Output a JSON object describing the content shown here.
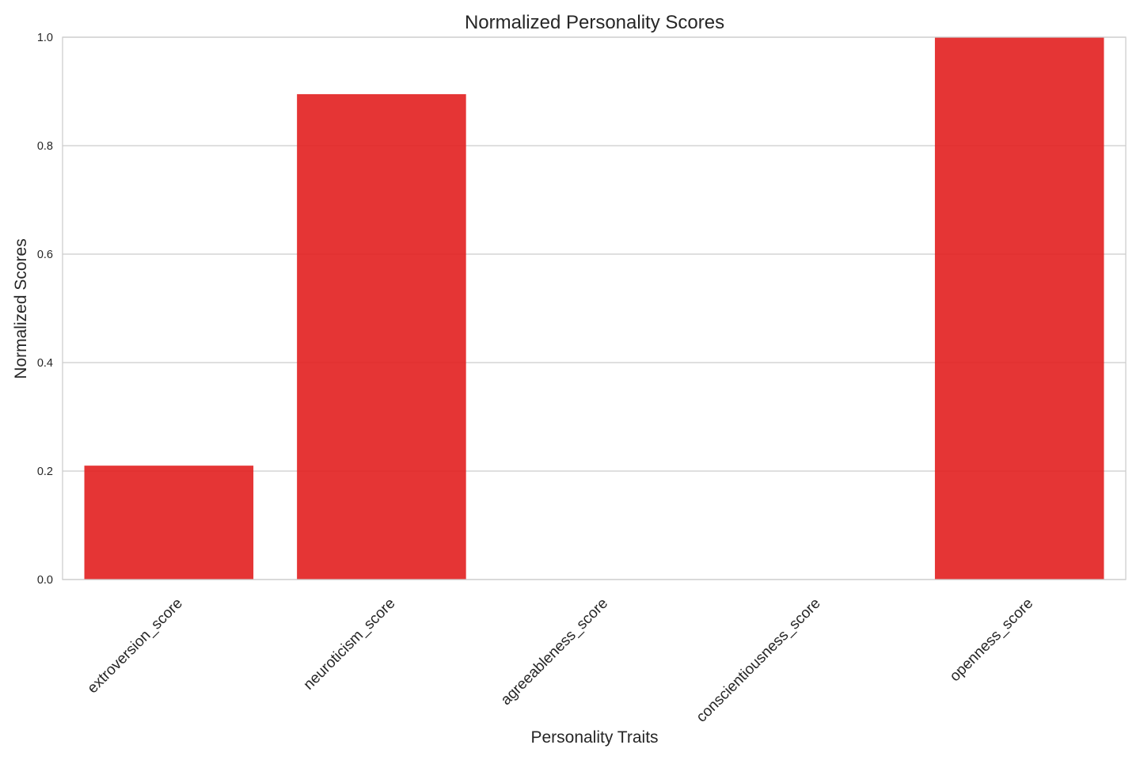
{
  "chart_data": {
    "type": "bar",
    "title": "Normalized Personality Scores",
    "xlabel": "Personality Traits",
    "ylabel": "Normalized Scores",
    "categories": [
      "extroversion_score",
      "neuroticism_score",
      "agreeableness_score",
      "conscientiousness_score",
      "openness_score"
    ],
    "values": [
      0.21,
      0.895,
      0.0,
      0.0,
      1.0
    ],
    "ylim": [
      0,
      1.0
    ],
    "yticks": [
      "0.0",
      "0.2",
      "0.4",
      "0.6",
      "0.8",
      "1.0"
    ],
    "grid": true,
    "bar_color": "#e32424",
    "grid_color": "#cccccc"
  }
}
